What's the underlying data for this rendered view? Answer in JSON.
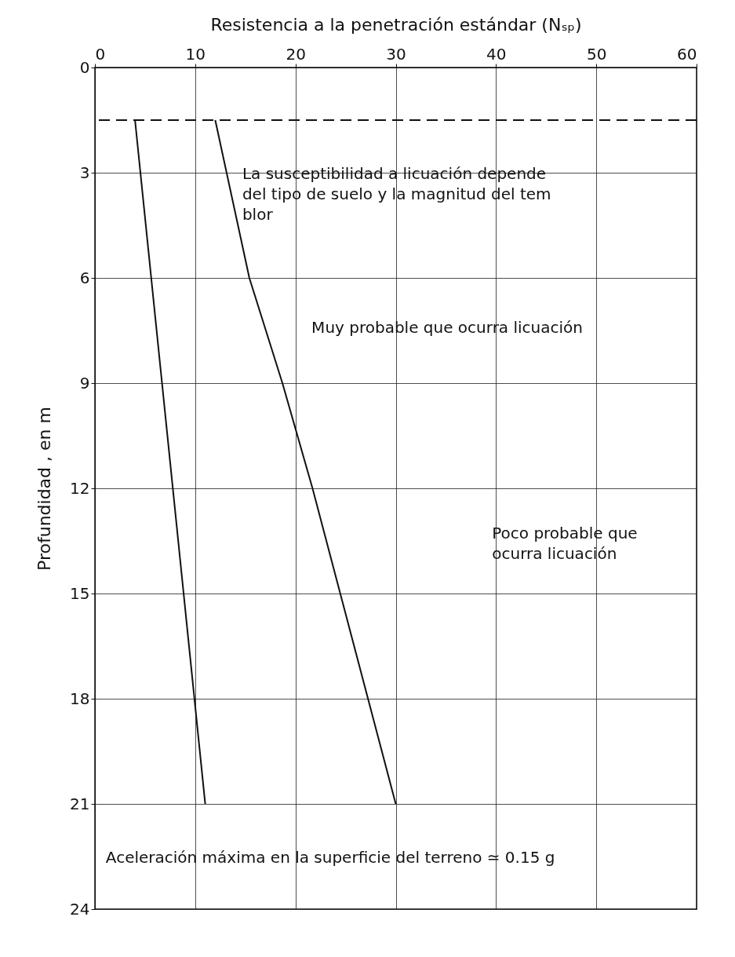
{
  "chart_data": {
    "type": "line",
    "xlabel": "Resistencia a la penetración estándar (Nₛₚ)",
    "ylabel": "Profundidad , en m",
    "xlim": [
      0,
      60
    ],
    "xticks": [
      0,
      10,
      20,
      30,
      40,
      50,
      60
    ],
    "ylim": [
      24,
      0
    ],
    "yticks": [
      0,
      3,
      6,
      9,
      12,
      15,
      18,
      21,
      24
    ],
    "grid": true,
    "series": [
      {
        "type": "line",
        "color": "#111111",
        "x": [
          4,
          11
        ],
        "values": [
          1.5,
          21
        ]
      },
      {
        "type": "line",
        "color": "#111111",
        "x": [
          12,
          15.4,
          18.7,
          21.7,
          30
        ],
        "values": [
          1.5,
          6,
          9,
          12,
          21
        ]
      }
    ],
    "ref_lines": [
      {
        "axis": "y",
        "value": 1.5,
        "line_style": "dashed",
        "color": "#111111"
      }
    ],
    "annotations": [
      "La susceptibilidad a licuación depende\ndel tipo de suelo y la magnitud del tem\nblor",
      "Muy probable que ocurra licuación",
      "Poco probable que\nocurra licuación",
      "Aceleración máxima en la superficie del terreno ≃ 0.15 g"
    ]
  }
}
